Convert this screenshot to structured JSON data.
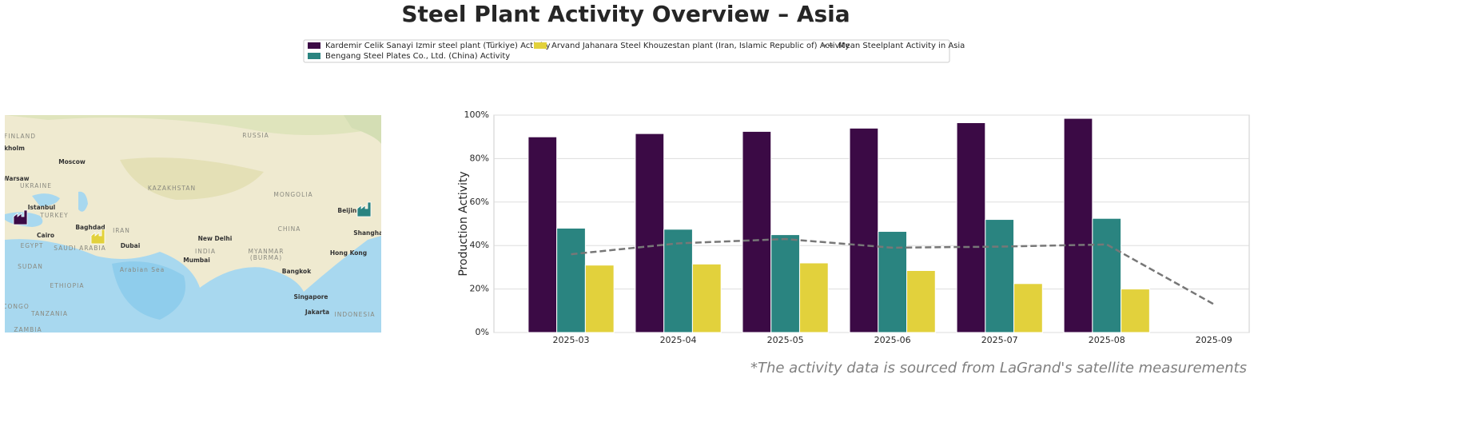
{
  "chart_data": {
    "type": "bar",
    "title": "Steel Plant Activity Overview – Asia",
    "ylabel": "Production Activity",
    "footnote": "*The activity data is sourced from LaGrand's satellite measurements",
    "categories": [
      "2025-03",
      "2025-04",
      "2025-05",
      "2025-06",
      "2025-07",
      "2025-08",
      "2025-09"
    ],
    "series": [
      {
        "name": "Kardemir Celik Sanayi Izmir steel plant (Türkiye) Activity",
        "color": "#3b0a45",
        "values": [
          90,
          91.5,
          92.5,
          94,
          96.5,
          98.5,
          null
        ]
      },
      {
        "name": "Bengang Steel Plates Co., Ltd. (China) Activity",
        "color": "#2a8480",
        "values": [
          48,
          47.5,
          45,
          46.5,
          52,
          52.5,
          null
        ]
      },
      {
        "name": "Arvand Jahanara Steel Khouzestan plant (Iran, Islamic Republic of) Activity",
        "color": "#e2d13c",
        "values": [
          31,
          31.5,
          32,
          28.5,
          22.5,
          20,
          null
        ]
      },
      {
        "name": "Mean Steelplant Activity in Asia",
        "type": "line",
        "color": "#777777",
        "values": [
          36,
          41,
          43,
          39,
          39.5,
          40.5,
          13
        ]
      }
    ],
    "ylim": [
      0,
      100
    ],
    "yticks": [
      {
        "value": 0,
        "label": "0%"
      },
      {
        "value": 20,
        "label": "20%"
      },
      {
        "value": 40,
        "label": "40%"
      },
      {
        "value": 60,
        "label": "60%"
      },
      {
        "value": 80,
        "label": "80%"
      },
      {
        "value": 100,
        "label": "100%"
      }
    ],
    "grid": true,
    "legend": "top",
    "map": {
      "labels": [
        "FINLAND",
        "kholm",
        "Moscow",
        "RUSSIA",
        "Warsaw",
        "UKRAINE",
        "KAZAKHSTAN",
        "MONGOLIA",
        "Istanbul",
        "TURKEY",
        "Beijing",
        "Baghdad",
        "IRAN",
        "CHINA",
        "Shanghai",
        "Cairo",
        "EGYPT",
        "SAUDI ARABIA",
        "Dubai",
        "New Delhi",
        "INDIA",
        "MYANMAR",
        "(BURMA)",
        "Hong Kong",
        "Mumbai",
        "Arabian Sea",
        "Bangkok",
        "SUDAN",
        "ETHIOPIA",
        "Singapore",
        "Jakarta",
        "INDONESIA",
        "TANZANIA",
        "CONGO",
        "ZAMBIA"
      ]
    }
  }
}
